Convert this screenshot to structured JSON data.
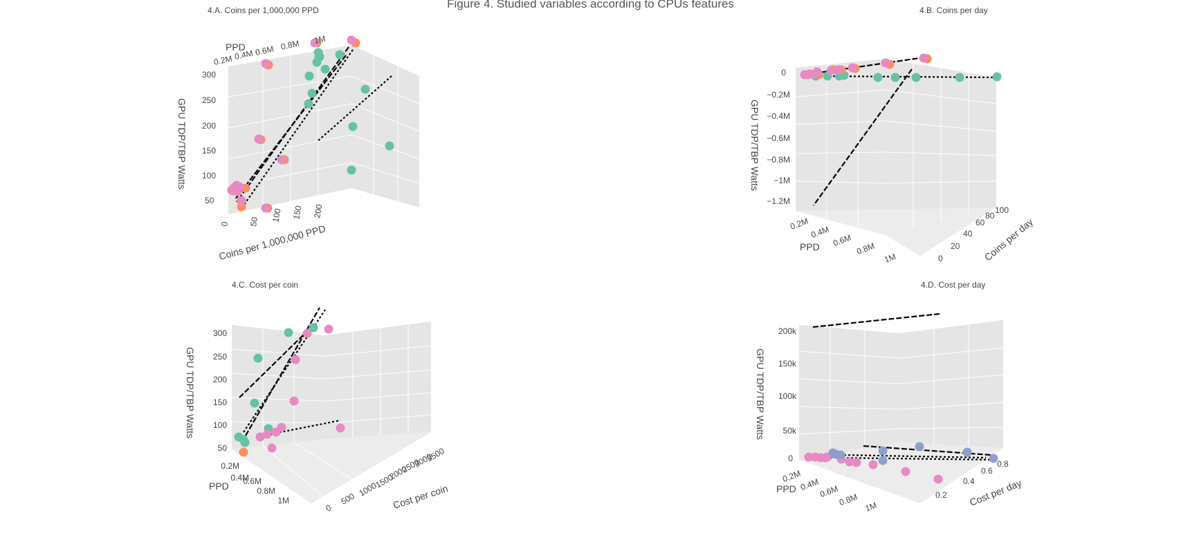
{
  "figure": {
    "title": "Figure 4. Studied variables according to CPUs features"
  },
  "colors": {
    "green": "#66c2a5",
    "orange": "#fc8d62",
    "pink": "#e78ac3",
    "blue": "#8da0cb",
    "pane": "#e5e5e5",
    "grid": "#ffffff",
    "fit_line": "#000000"
  },
  "chart_data": [
    {
      "id": "A",
      "type": "scatter3d",
      "title": "4.A. Coins per 1,000,000 PPD",
      "zlabel": "GPU TDP/TBP Watts",
      "z_ticks": [
        "50",
        "100",
        "150",
        "200",
        "250",
        "300"
      ],
      "xlabel": "Coins per 1,000,000 PPD",
      "x_ticks": [
        "0",
        "50",
        "100",
        "150",
        "200"
      ],
      "ylabel": "PPD",
      "y_ticks": [
        "0.2M",
        "0.4M",
        "0.6M",
        "0.8M",
        "1M"
      ],
      "series": [
        {
          "color": "green",
          "points": [
            [
              458,
              90
            ],
            [
              461,
              83
            ],
            [
              462,
              82
            ],
            [
              460,
              76
            ],
            [
              491,
              79
            ],
            [
              470,
              100
            ],
            [
              451,
              135
            ],
            [
              510,
              183
            ],
            [
              528,
              129
            ],
            [
              563,
              211
            ],
            [
              508,
              246
            ],
            [
              447,
              110
            ],
            [
              446,
              150
            ]
          ]
        },
        {
          "color": "orange",
          "points": [
            [
              458,
              62
            ],
            [
              514,
              62
            ],
            [
              388,
              94
            ],
            [
              377,
              202
            ],
            [
              411,
              231
            ],
            [
              387,
              301
            ],
            [
              349,
              290
            ],
            [
              349,
              299
            ],
            [
              355,
              272
            ],
            [
              343,
              277
            ],
            [
              335,
              275
            ]
          ]
        },
        {
          "color": "pink",
          "points": [
            [
              455,
              62
            ],
            [
              508,
              58
            ],
            [
              384,
              92
            ],
            [
              374,
              201
            ],
            [
              407,
              231
            ],
            [
              384,
              301
            ],
            [
              343,
              276
            ],
            [
              336,
              276
            ],
            [
              338,
              272
            ],
            [
              349,
              290
            ],
            [
              346,
              270
            ],
            [
              342,
              268
            ]
          ]
        }
      ],
      "fit_lines": [
        [
          [
            504,
            68
          ],
          [
            342,
            292
          ]
        ],
        [
          [
            510,
            72
          ],
          [
            350,
            300
          ]
        ],
        [
          [
            500,
            80
          ],
          [
            340,
            288
          ]
        ],
        [
          [
            566,
            110
          ],
          [
            458,
            205
          ]
        ]
      ]
    },
    {
      "id": "B",
      "type": "scatter3d",
      "title": "4.B. Coins per day",
      "zlabel": "GPU TDP/TBP Watts",
      "z_ticks": [
        "0",
        "−0.2M",
        "−0.4M",
        "−0.6M",
        "−0.8M",
        "−1M",
        "−1.2M"
      ],
      "xlabel": "PPD",
      "x_ticks": [
        "0.2M",
        "0.4M",
        "0.6M",
        "0.8M",
        "1M"
      ],
      "ylabel": "Coins per day",
      "y_ticks": [
        "0",
        "20",
        "40",
        "60",
        "80",
        "100"
      ],
      "series": [
        {
          "color": "green",
          "points": [
            [
              1179,
              110
            ],
            [
              1196,
              110
            ],
            [
              1213,
              110
            ],
            [
              1220,
              109
            ],
            [
              1269,
              112
            ],
            [
              1294,
              112
            ],
            [
              1324,
              112
            ],
            [
              1387,
              112
            ],
            [
              1441,
              111
            ]
          ]
        },
        {
          "color": "orange",
          "points": [
            [
              1168,
              108
            ],
            [
              1178,
              107
            ],
            [
              1183,
              108
            ],
            [
              1204,
              101
            ],
            [
              1216,
              101
            ],
            [
              1236,
              99
            ],
            [
              1286,
              93
            ],
            [
              1340,
              85
            ]
          ]
        },
        {
          "color": "pink",
          "points": [
            [
              1163,
              108
            ],
            [
              1170,
              107
            ],
            [
              1178,
              107
            ],
            [
              1181,
              104
            ],
            [
              1201,
              102
            ],
            [
              1212,
              101
            ],
            [
              1232,
              98
            ],
            [
              1280,
              91
            ],
            [
              1335,
              84
            ]
          ]
        }
      ],
      "fit_lines": [
        [
          [
            1177,
            106
          ],
          [
            1343,
            82
          ]
        ],
        [
          [
            1180,
            110
          ],
          [
            1441,
            112
          ]
        ],
        [
          [
            1318,
            100
          ],
          [
            1176,
            297
          ]
        ]
      ]
    },
    {
      "id": "C",
      "type": "scatter3d",
      "title": "4.C. Cost per coin",
      "zlabel": "GPU TDP/TBP Watts",
      "z_ticks": [
        "50",
        "100",
        "150",
        "200",
        "250",
        "300"
      ],
      "xlabel": "PPD",
      "x_ticks": [
        "0.2M",
        "0.4M",
        "0.6M",
        "0.8M",
        "1M"
      ],
      "ylabel": "Cost per coin",
      "y_ticks": [
        "0",
        "500",
        "1000",
        "1500",
        "2000",
        "2500",
        "3000",
        "3500"
      ],
      "series": [
        {
          "color": "green",
          "points": [
            [
              345,
              632
            ],
            [
              352,
              636
            ],
            [
              354,
              640
            ],
            [
              388,
              620
            ],
            [
              368,
              583
            ],
            [
              373,
              518
            ],
            [
              417,
              481
            ],
            [
              453,
              474
            ]
          ]
        },
        {
          "color": "orange",
          "points": [
            [
              352,
              654
            ]
          ]
        },
        {
          "color": "pink",
          "points": [
            [
              376,
              632
            ],
            [
              386,
              628
            ],
            [
              399,
              625
            ],
            [
              407,
              618
            ],
            [
              393,
              648
            ],
            [
              425,
              580
            ],
            [
              427,
              520
            ],
            [
              444,
              482
            ],
            [
              475,
              476
            ],
            [
              492,
              619
            ]
          ]
        }
      ],
      "fit_lines": [
        [
          [
            355,
            630
          ],
          [
            462,
            445
          ]
        ],
        [
          [
            352,
            625
          ],
          [
            470,
            448
          ]
        ],
        [
          [
            346,
            575
          ],
          [
            442,
            481
          ]
        ],
        [
          [
            380,
            630
          ],
          [
            492,
            608
          ]
        ]
      ]
    },
    {
      "id": "D",
      "type": "scatter3d",
      "title": "4.D. Cost per day",
      "zlabel": "GPU TDP/TBP Watts",
      "z_ticks": [
        "0",
        "50k",
        "100k",
        "150k",
        "200k"
      ],
      "xlabel": "PPD",
      "x_ticks": [
        "0.2M",
        "0.4M",
        "0.6M",
        "0.8M",
        "1M"
      ],
      "ylabel": "Cost per day",
      "y_ticks": [
        "0.2",
        "0.4",
        "0.6",
        "0.8"
      ],
      "series": [
        {
          "color": "pink",
          "points": [
            [
              1169,
              661
            ],
            [
              1178,
              661
            ],
            [
              1186,
              662
            ],
            [
              1193,
              662
            ],
            [
              1196,
              661
            ],
            [
              1216,
              664
            ],
            [
              1228,
              668
            ],
            [
              1238,
              669
            ],
            [
              1262,
              672
            ],
            [
              1309,
              682
            ],
            [
              1356,
              693
            ]
          ]
        },
        {
          "color": "blue",
          "points": [
            [
              1204,
              655
            ],
            [
              1208,
              657
            ],
            [
              1215,
              658
            ],
            [
              1276,
              652
            ],
            [
              1276,
              666
            ],
            [
              1329,
              646
            ],
            [
              1398,
              654
            ],
            [
              1436,
              663
            ]
          ]
        }
      ],
      "fit_lines": [
        [
          [
            1175,
            473
          ],
          [
            1358,
            454
          ]
        ],
        [
          [
            1200,
            662
          ],
          [
            1440,
            665
          ]
        ],
        [
          [
            1248,
            645
          ],
          [
            1432,
            658
          ]
        ],
        [
          [
            1220,
            658
          ],
          [
            1425,
            662
          ]
        ]
      ]
    }
  ]
}
